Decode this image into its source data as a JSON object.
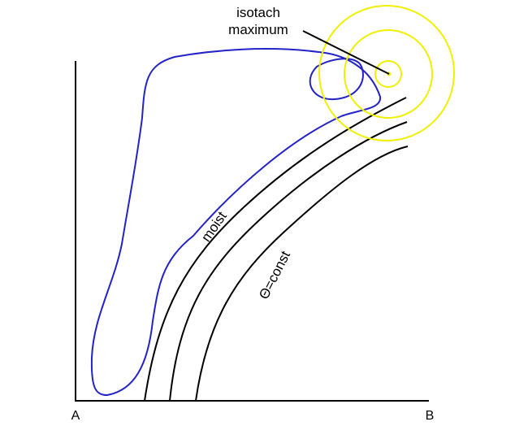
{
  "labels": {
    "isotach_line1": "isotach",
    "isotach_line2": "maximum",
    "moist": "moist",
    "theta_const": "Θ=const",
    "axis_origin": "A",
    "axis_end": "B"
  },
  "colors": {
    "axis": "#000000",
    "moist_contour": "#2323c8",
    "isotach": "#f0f000",
    "theta_lines": "#000000",
    "background": "#ffffff"
  }
}
